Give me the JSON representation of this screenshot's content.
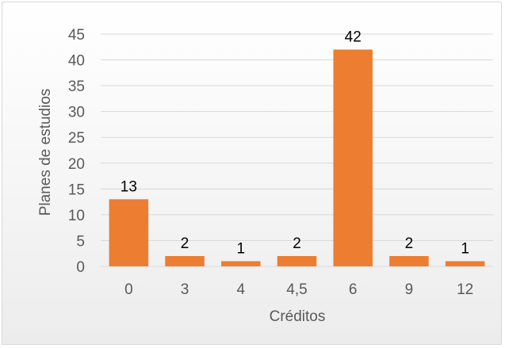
{
  "chart_data": {
    "type": "bar",
    "categories": [
      "0",
      "3",
      "4",
      "4,5",
      "6",
      "9",
      "12"
    ],
    "values": [
      13,
      2,
      1,
      2,
      42,
      2,
      1
    ],
    "data_labels": [
      "13",
      "2",
      "1",
      "2",
      "42",
      "2",
      "1"
    ],
    "title": "",
    "xlabel": "Créditos",
    "ylabel": "Planes de estudios",
    "ylim": [
      0,
      45
    ],
    "yticks": [
      0,
      5,
      10,
      15,
      20,
      25,
      30,
      35,
      40,
      45
    ],
    "ytick_labels": [
      "0",
      "5",
      "10",
      "15",
      "20",
      "25",
      "30",
      "35",
      "40",
      "45"
    ],
    "grid": true,
    "legend": "none",
    "bar_color": "#ED7D31",
    "grid_color": "#d9d9d9",
    "text_color": "#595959"
  }
}
